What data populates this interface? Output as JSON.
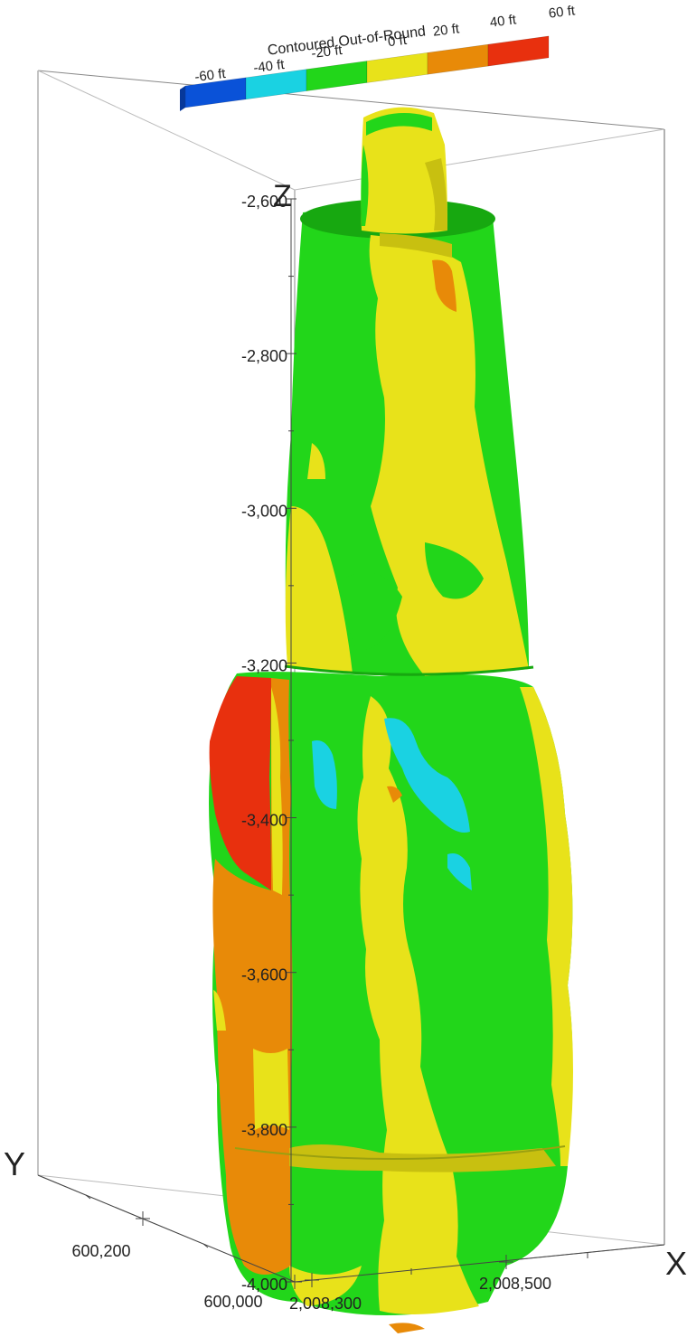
{
  "colorbar": {
    "title": "Contoured Out-of-Round",
    "bins": [
      {
        "label": "-60 ft",
        "color": "#0a52d8"
      },
      {
        "label": "-40 ft",
        "color": "#1ad2e2"
      },
      {
        "label": "-20 ft",
        "color": "#22d61a"
      },
      {
        "label": "0 ft",
        "color": "#e8e21a"
      },
      {
        "label": "20 ft",
        "color": "#e88a08"
      },
      {
        "label": "40 ft",
        "color": "#e8300e"
      },
      {
        "label": "60 ft",
        "color": ""
      }
    ]
  },
  "axes": {
    "z": {
      "name": "Z",
      "ticks": [
        "-2,600",
        "-2,800",
        "-3,000",
        "-3,200",
        "-3,400",
        "-3,600",
        "-3,800",
        "-4,000"
      ]
    },
    "x": {
      "name": "X",
      "ticks": [
        "2,008,300",
        "2,008,500"
      ]
    },
    "y": {
      "name": "Y",
      "ticks": [
        "600,000",
        "600,200"
      ]
    }
  },
  "surface_colors": {
    "green": "#22d61a",
    "green_dark": "#17a810",
    "yellow": "#e8e21a",
    "yellow_dark": "#c8c010",
    "orange": "#e88a08",
    "red": "#e8300e",
    "cyan": "#1ad2e2"
  }
}
